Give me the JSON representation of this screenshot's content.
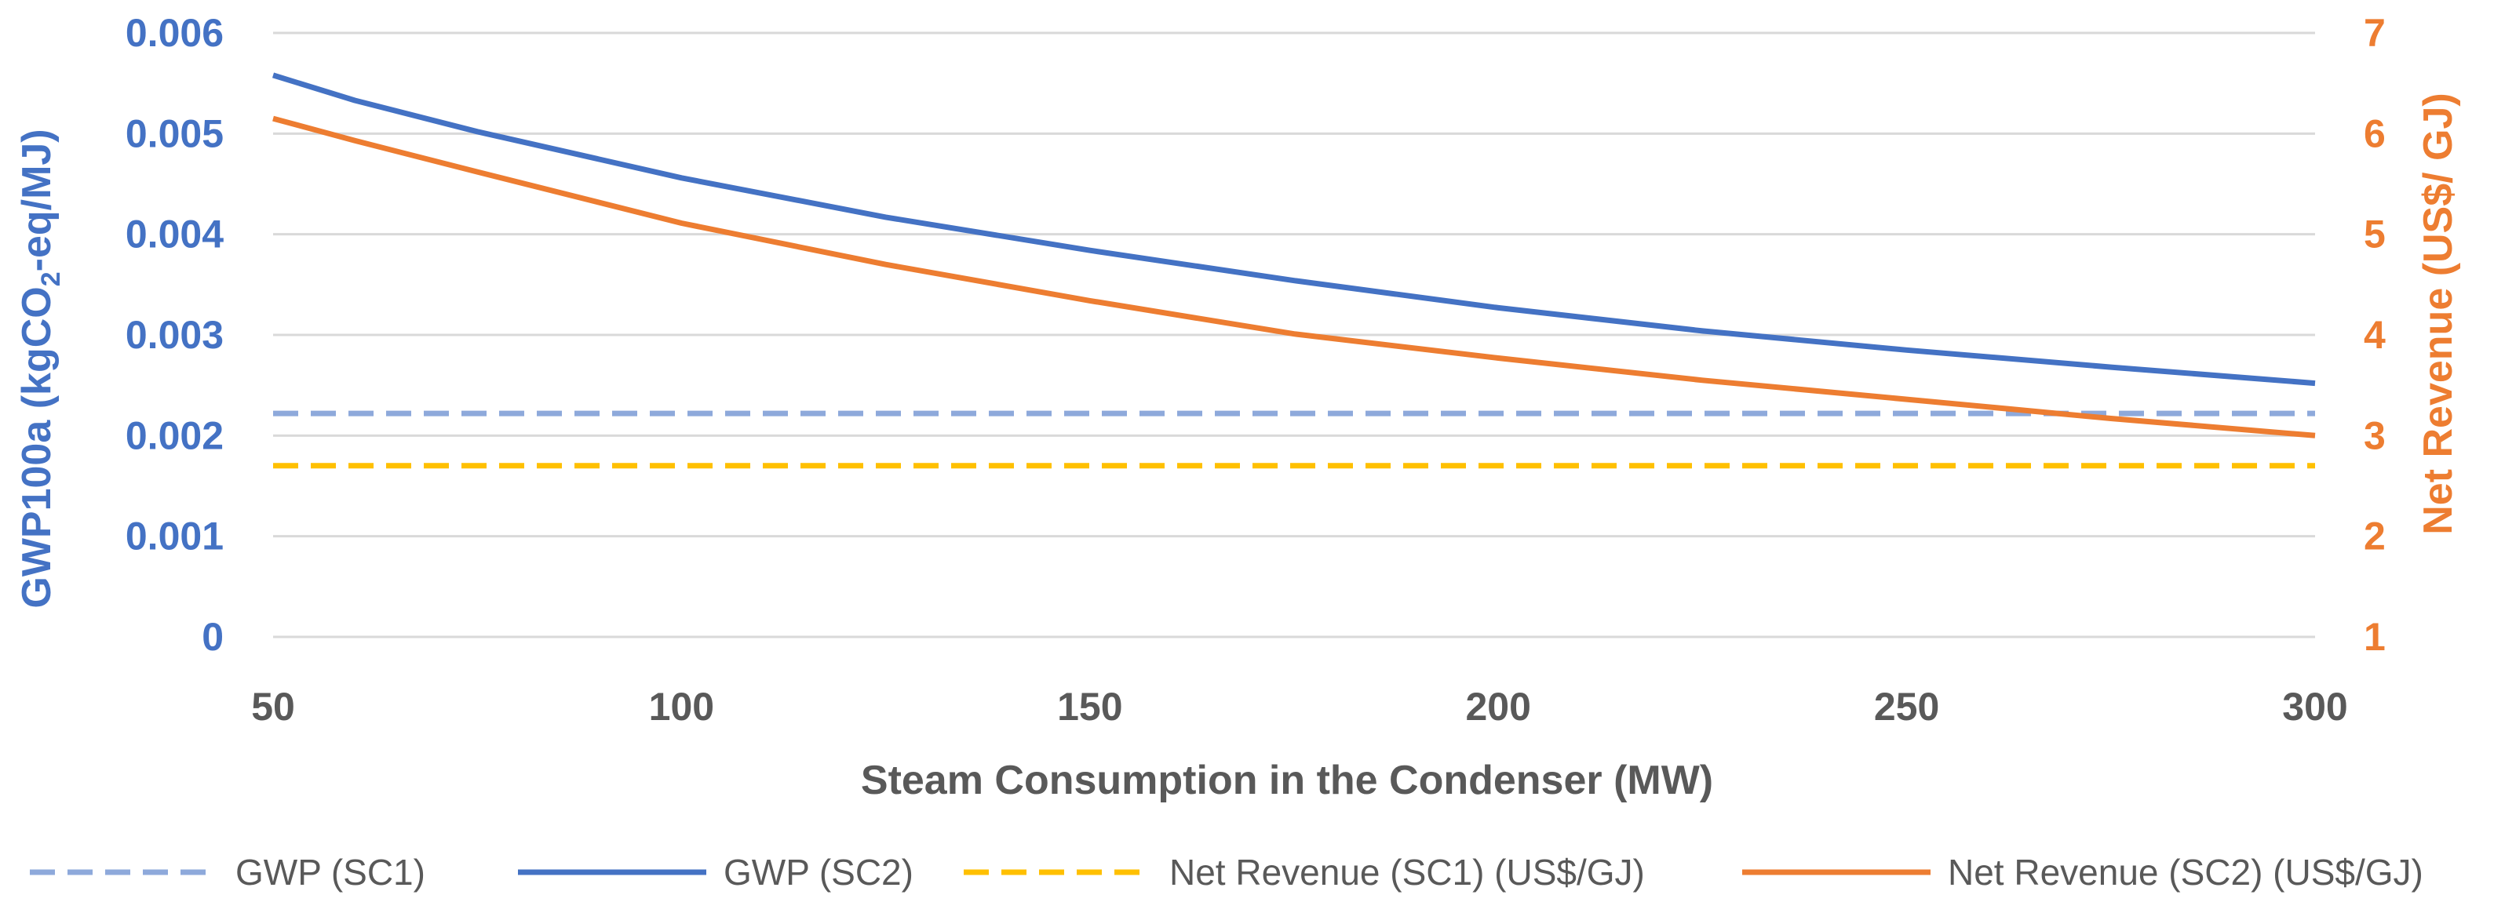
{
  "chart_data": {
    "type": "line",
    "xlabel": "Steam Consumption in the Condenser (MW)",
    "ylabel_left": {
      "main": "GWP100a (kgCO",
      "sub": "2",
      "tail": "-eq/MJ)"
    },
    "ylabel_right": "Net Revenue (US$/ GJ)",
    "x": [
      50,
      60,
      75,
      100,
      125,
      150,
      175,
      200,
      225,
      250,
      275,
      300
    ],
    "xlim": [
      50,
      300
    ],
    "xticks": [
      "50",
      "100",
      "150",
      "200",
      "250",
      "300"
    ],
    "ylim_left": [
      0,
      0.006
    ],
    "yticks_left": [
      "0",
      "0.001",
      "0.002",
      "0.003",
      "0.004",
      "0.005",
      "0.006"
    ],
    "ylim_right": [
      1,
      7
    ],
    "yticks_right": [
      "1",
      "2",
      "3",
      "4",
      "5",
      "6",
      "7"
    ],
    "grid": true,
    "legend_position": "bottom",
    "series": [
      {
        "name": "GWP (SC1)",
        "axis": "left",
        "style": "dashed",
        "color": "#8EA9DB",
        "values": [
          0.00222,
          0.00222,
          0.00222,
          0.00222,
          0.00222,
          0.00222,
          0.00222,
          0.00222,
          0.00222,
          0.00222,
          0.00222,
          0.00222
        ]
      },
      {
        "name": "GWP (SC2)",
        "axis": "left",
        "style": "solid",
        "color": "#4472C4",
        "values": [
          0.00558,
          0.00533,
          0.00502,
          0.00456,
          0.00417,
          0.00384,
          0.00354,
          0.00327,
          0.00304,
          0.00285,
          0.00268,
          0.00252
        ]
      },
      {
        "name": "Net Revenue (SC1) (US$/GJ)",
        "axis": "right",
        "style": "dashed",
        "color": "#FFC000",
        "values": [
          2.7,
          2.7,
          2.7,
          2.7,
          2.7,
          2.7,
          2.7,
          2.7,
          2.7,
          2.7,
          2.7,
          2.7
        ]
      },
      {
        "name": "Net Revenue (SC2) (US$/GJ)",
        "axis": "right",
        "style": "solid",
        "color": "#ED7D31",
        "values": [
          6.15,
          5.93,
          5.62,
          5.11,
          4.7,
          4.34,
          4.01,
          3.77,
          3.55,
          3.36,
          3.17,
          3.0
        ]
      }
    ],
    "colors": {
      "left_axis": "#4472C4",
      "right_axis": "#ED7D31",
      "grid": "#D9D9D9",
      "x_axis_text": "#595959"
    }
  }
}
